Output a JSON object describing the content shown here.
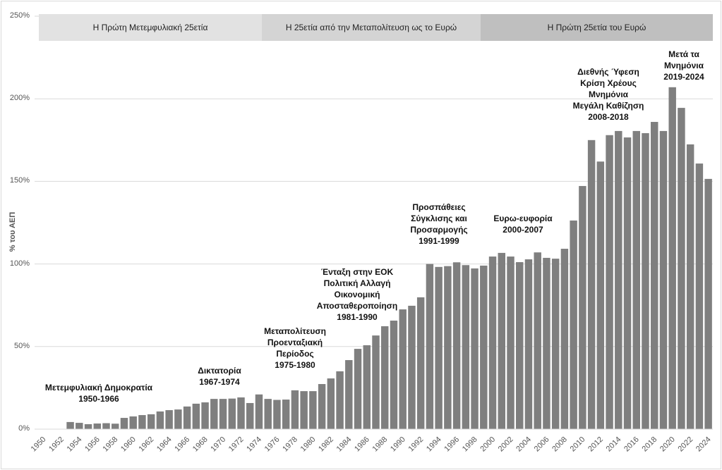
{
  "chart_data": {
    "type": "bar",
    "title": "",
    "xlabel": "",
    "ylabel": "% του ΑΕΠ",
    "ylim": [
      0,
      250
    ],
    "yticks": [
      "0%",
      "50%",
      "100%",
      "150%",
      "200%",
      "250%"
    ],
    "grid": true,
    "bar_color": "#7f7f7f",
    "categories": [
      "1950",
      "1951",
      "1952",
      "1953",
      "1954",
      "1955",
      "1956",
      "1957",
      "1958",
      "1959",
      "1960",
      "1961",
      "1962",
      "1963",
      "1964",
      "1965",
      "1966",
      "1967",
      "1968",
      "1969",
      "1970",
      "1971",
      "1972",
      "1973",
      "1974",
      "1975",
      "1976",
      "1977",
      "1978",
      "1979",
      "1980",
      "1981",
      "1982",
      "1983",
      "1984",
      "1985",
      "1986",
      "1987",
      "1988",
      "1989",
      "1990",
      "1991",
      "1992",
      "1993",
      "1994",
      "1995",
      "1996",
      "1997",
      "1998",
      "1999",
      "2000",
      "2001",
      "2002",
      "2003",
      "2004",
      "2005",
      "2006",
      "2007",
      "2008",
      "2009",
      "2010",
      "2011",
      "2012",
      "2013",
      "2014",
      "2015",
      "2016",
      "2017",
      "2018",
      "2019",
      "2020",
      "2021",
      "2022",
      "2023",
      "2024"
    ],
    "values": [
      null,
      null,
      null,
      4.3,
      3.8,
      3.0,
      3.4,
      3.6,
      3.3,
      6.8,
      7.7,
      8.5,
      9.0,
      10.7,
      11.5,
      11.9,
      13.7,
      15.4,
      16.2,
      18.3,
      18.3,
      18.5,
      19.2,
      15.8,
      21.0,
      18.3,
      17.7,
      17.9,
      23.5,
      23.0,
      23.0,
      27.3,
      30.7,
      35.0,
      41.8,
      48.6,
      50.8,
      56.7,
      62.3,
      65.7,
      72.5,
      74.7,
      79.8,
      100.0,
      98.2,
      98.7,
      101.0,
      99.3,
      97.3,
      99.0,
      104.5,
      106.7,
      104.5,
      101.1,
      102.8,
      107.0,
      103.7,
      103.2,
      109.2,
      126.3,
      147.2,
      175.0,
      162.0,
      178.0,
      180.5,
      176.6,
      180.5,
      179.2,
      186.0,
      180.5,
      207.0,
      194.5,
      172.4,
      160.8,
      151.5
    ],
    "periods": [
      {
        "label": "Η Πρώτη Μετεμφυλιακή 25ετία",
        "color": "#e2e2e2"
      },
      {
        "label": "Η 25ετία από την Μεταπολίτευση ως το Ευρώ",
        "color": "#d4d4d4"
      },
      {
        "label": "Η Πρώτη 25ετία του Ευρώ",
        "color": "#bfbfbf"
      }
    ],
    "annotations": [
      {
        "lines": [
          "Μετεμφυλιακή Δημοκρατία",
          "1950-1966"
        ]
      },
      {
        "lines": [
          "Δικτατορία",
          "1967-1974"
        ]
      },
      {
        "lines": [
          "Μεταπολίτευση",
          "Προενταξιακή",
          "Περίοδος",
          "1975-1980"
        ]
      },
      {
        "lines": [
          "Ένταξη στην ΕΟΚ",
          "Πολιτική Αλλαγή",
          "Οικονομική",
          "Αποσταθεροποίηση",
          "1981-1990"
        ]
      },
      {
        "lines": [
          "Προσπάθειες",
          "Σύγκλισης και",
          "Προσαρμογής",
          "1991-1999"
        ]
      },
      {
        "lines": [
          "Ευρω-ευφορία",
          "2000-2007"
        ]
      },
      {
        "lines": [
          "Διεθνής Ύφεση",
          "Κρίση Χρέους",
          "Μνημόνια",
          "Μεγάλη Καθίζηση",
          "2008-2018"
        ]
      },
      {
        "lines": [
          "Μετά τα",
          "Μνημόνια",
          "2019-2024"
        ]
      }
    ]
  }
}
